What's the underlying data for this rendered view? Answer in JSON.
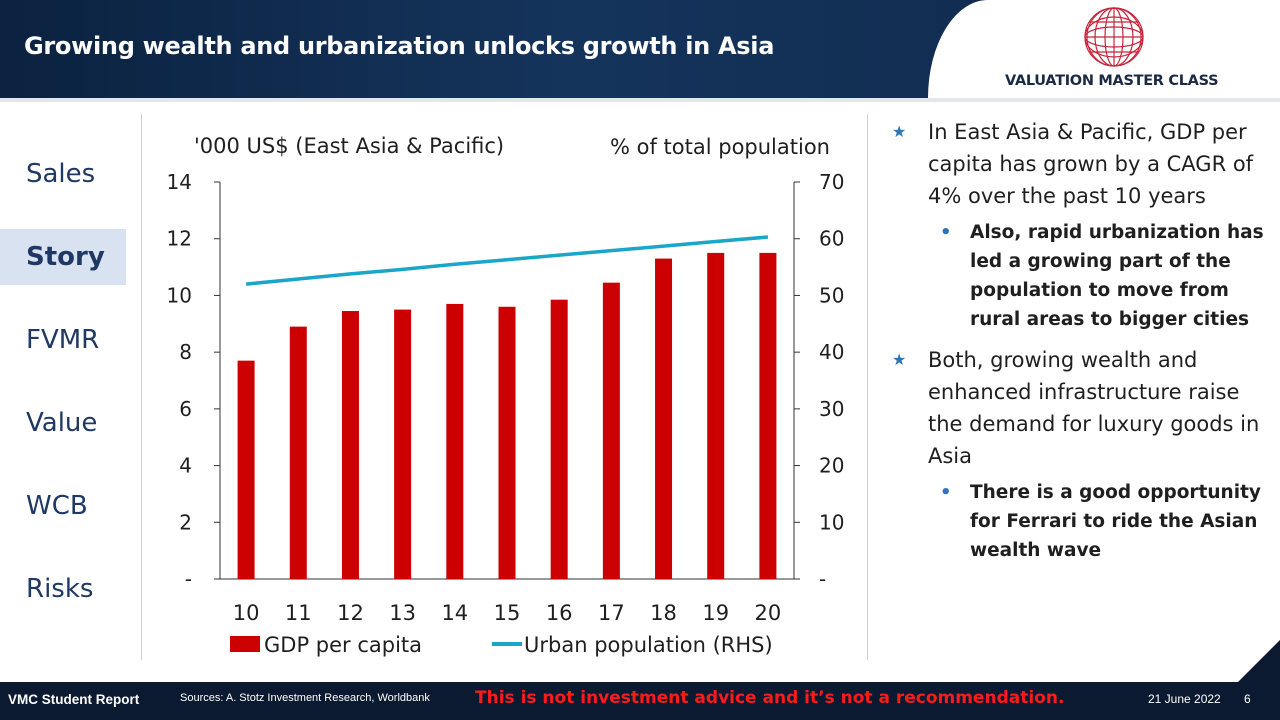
{
  "header": {
    "title": "Growing wealth and urbanization unlocks growth in Asia",
    "logo_text": "VALUATION MASTER CLASS",
    "logo_icon": "globe-icon",
    "logo_color": "#c8243b"
  },
  "sidebar": {
    "items": [
      {
        "label": "Sales",
        "active": false
      },
      {
        "label": "Story",
        "active": true
      },
      {
        "label": "FVMR",
        "active": false
      },
      {
        "label": "Value",
        "active": false
      },
      {
        "label": "WCB",
        "active": false
      },
      {
        "label": "Risks",
        "active": false
      }
    ]
  },
  "chart_data": {
    "type": "bar",
    "y_left_label": "'000 US$ (East Asia & Pacific)",
    "y_right_label": "% of total population",
    "categories": [
      "10",
      "11",
      "12",
      "13",
      "14",
      "15",
      "16",
      "17",
      "18",
      "19",
      "20"
    ],
    "series": [
      {
        "name": "GDP per capita",
        "type": "bar",
        "axis": "left",
        "color": "#cc0000",
        "values": [
          7.7,
          8.9,
          9.45,
          9.5,
          9.7,
          9.6,
          9.85,
          10.45,
          11.3,
          11.5,
          11.5
        ]
      },
      {
        "name": "Urban population (RHS)",
        "type": "line",
        "axis": "right",
        "color": "#1aa6c8",
        "values": [
          52.0,
          52.9,
          53.8,
          54.6,
          55.5,
          56.3,
          57.1,
          57.9,
          58.7,
          59.5,
          60.3
        ]
      }
    ],
    "y_left_ticks": [
      "-",
      "2",
      "4",
      "6",
      "8",
      "10",
      "12",
      "14"
    ],
    "y_right_ticks": [
      "-",
      "10",
      "20",
      "30",
      "40",
      "50",
      "60",
      "70"
    ],
    "y_left_lim": [
      0,
      14
    ],
    "y_right_lim": [
      0,
      70
    ],
    "grid": false,
    "legend_position": "bottom"
  },
  "bullets": [
    {
      "text": "In East Asia & Pacific, GDP per capita has grown by a CAGR of 4% over the past 10 years",
      "sub": [
        "Also, rapid urbanization has led a growing part of the population to move from rural areas to bigger cities"
      ]
    },
    {
      "text": "Both, growing wealth and enhanced infrastructure raise the demand for luxury goods in Asia",
      "sub": [
        "There is a good opportunity for Ferrari to ride the Asian wealth wave"
      ]
    }
  ],
  "bullet_icon": "star-icon",
  "sub_bullet_icon": "dot-icon",
  "footer": {
    "label": "VMC Student Report",
    "sources": "Sources: A. Stotz Investment Research, Worldbank",
    "disclaimer": "This is not investment advice and it’s not a recommendation.",
    "date": "21 June 2022",
    "page": "6"
  }
}
